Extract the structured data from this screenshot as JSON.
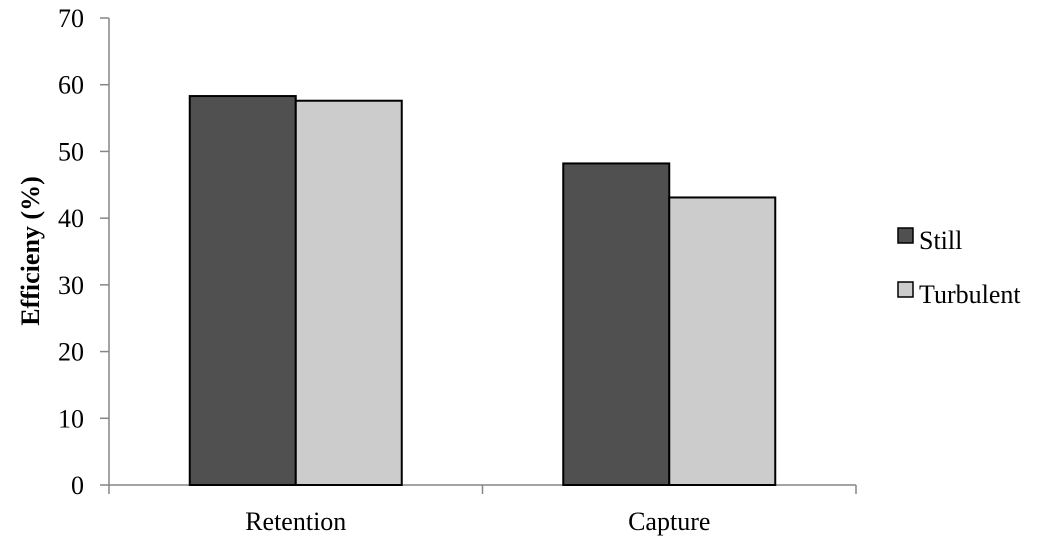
{
  "chart_data": {
    "type": "bar",
    "title": "",
    "xlabel": "",
    "ylabel": "Efficieny (%)",
    "categories": [
      "Retention",
      "Capture"
    ],
    "series": [
      {
        "name": "Still",
        "values": [
          58.3,
          48.2
        ]
      },
      {
        "name": "Turbulent",
        "values": [
          57.6,
          43.1
        ]
      }
    ],
    "ylim": [
      0,
      70
    ],
    "yticks": [
      "0",
      "10",
      "20",
      "30",
      "40",
      "50",
      "60",
      "70"
    ],
    "grid": false,
    "legend_position": "right",
    "colors": {
      "Still": "#505050",
      "Turbulent": "#cccccc",
      "outline": "#000000",
      "axis": "#868686"
    }
  }
}
